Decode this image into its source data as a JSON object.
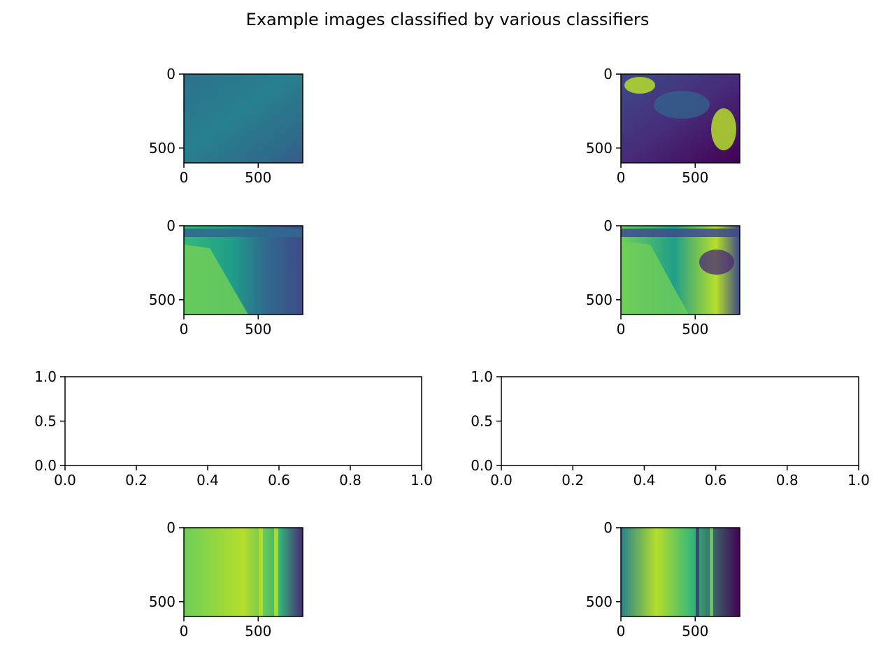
{
  "figure": {
    "title": "Example images classified by various classifiers"
  },
  "colors": {
    "viridis": [
      "#440154",
      "#482878",
      "#3e4a89",
      "#31688e",
      "#26828e",
      "#1f9e89",
      "#35b779",
      "#6ece58",
      "#b5de2b",
      "#fde725"
    ],
    "axes": "#000000",
    "background": "#ffffff"
  },
  "chart_data": [
    {
      "type": "heatmap",
      "name": "image-1",
      "xticks": [
        "0",
        "500"
      ],
      "yticks": [
        "0",
        "500"
      ],
      "xlim": [
        0,
        800
      ],
      "ylim": [
        600,
        0
      ],
      "colormap": "viridis",
      "tone": "teal-uniform"
    },
    {
      "type": "heatmap",
      "name": "image-2",
      "xticks": [
        "0",
        "500"
      ],
      "yticks": [
        "0",
        "500"
      ],
      "xlim": [
        0,
        800
      ],
      "ylim": [
        600,
        0
      ],
      "colormap": "viridis",
      "tone": "dark-with-bright-patches"
    },
    {
      "type": "heatmap",
      "name": "image-3",
      "xticks": [
        "0",
        "500"
      ],
      "yticks": [
        "0",
        "500"
      ],
      "xlim": [
        0,
        800
      ],
      "ylim": [
        600,
        0
      ],
      "colormap": "viridis",
      "tone": "bridge-grass-water"
    },
    {
      "type": "heatmap",
      "name": "image-4",
      "xticks": [
        "0",
        "500"
      ],
      "yticks": [
        "0",
        "500"
      ],
      "xlim": [
        0,
        800
      ],
      "ylim": [
        600,
        0
      ],
      "colormap": "viridis",
      "tone": "bridge-grass-water-bright"
    },
    {
      "type": "line",
      "name": "empty-axes-1",
      "series": [],
      "xlim": [
        0,
        1
      ],
      "ylim": [
        0,
        1
      ],
      "xticks": [
        "0.0",
        "0.2",
        "0.4",
        "0.6",
        "0.8",
        "1.0"
      ],
      "yticks": [
        "0.0",
        "0.5",
        "1.0"
      ]
    },
    {
      "type": "line",
      "name": "empty-axes-2",
      "series": [],
      "xlim": [
        0,
        1
      ],
      "ylim": [
        0,
        1
      ],
      "xticks": [
        "0.0",
        "0.2",
        "0.4",
        "0.6",
        "0.8",
        "1.0"
      ],
      "yticks": [
        "0.0",
        "0.5",
        "1.0"
      ]
    },
    {
      "type": "heatmap",
      "name": "image-5",
      "xticks": [
        "0",
        "500"
      ],
      "yticks": [
        "0",
        "500"
      ],
      "xlim": [
        0,
        800
      ],
      "ylim": [
        600,
        0
      ],
      "colormap": "viridis",
      "tone": "bright-vertical-stripes"
    },
    {
      "type": "heatmap",
      "name": "image-6",
      "xticks": [
        "0",
        "500"
      ],
      "yticks": [
        "0",
        "500"
      ],
      "xlim": [
        0,
        800
      ],
      "ylim": [
        600,
        0
      ],
      "colormap": "viridis",
      "tone": "bright-left-dark-right"
    }
  ]
}
